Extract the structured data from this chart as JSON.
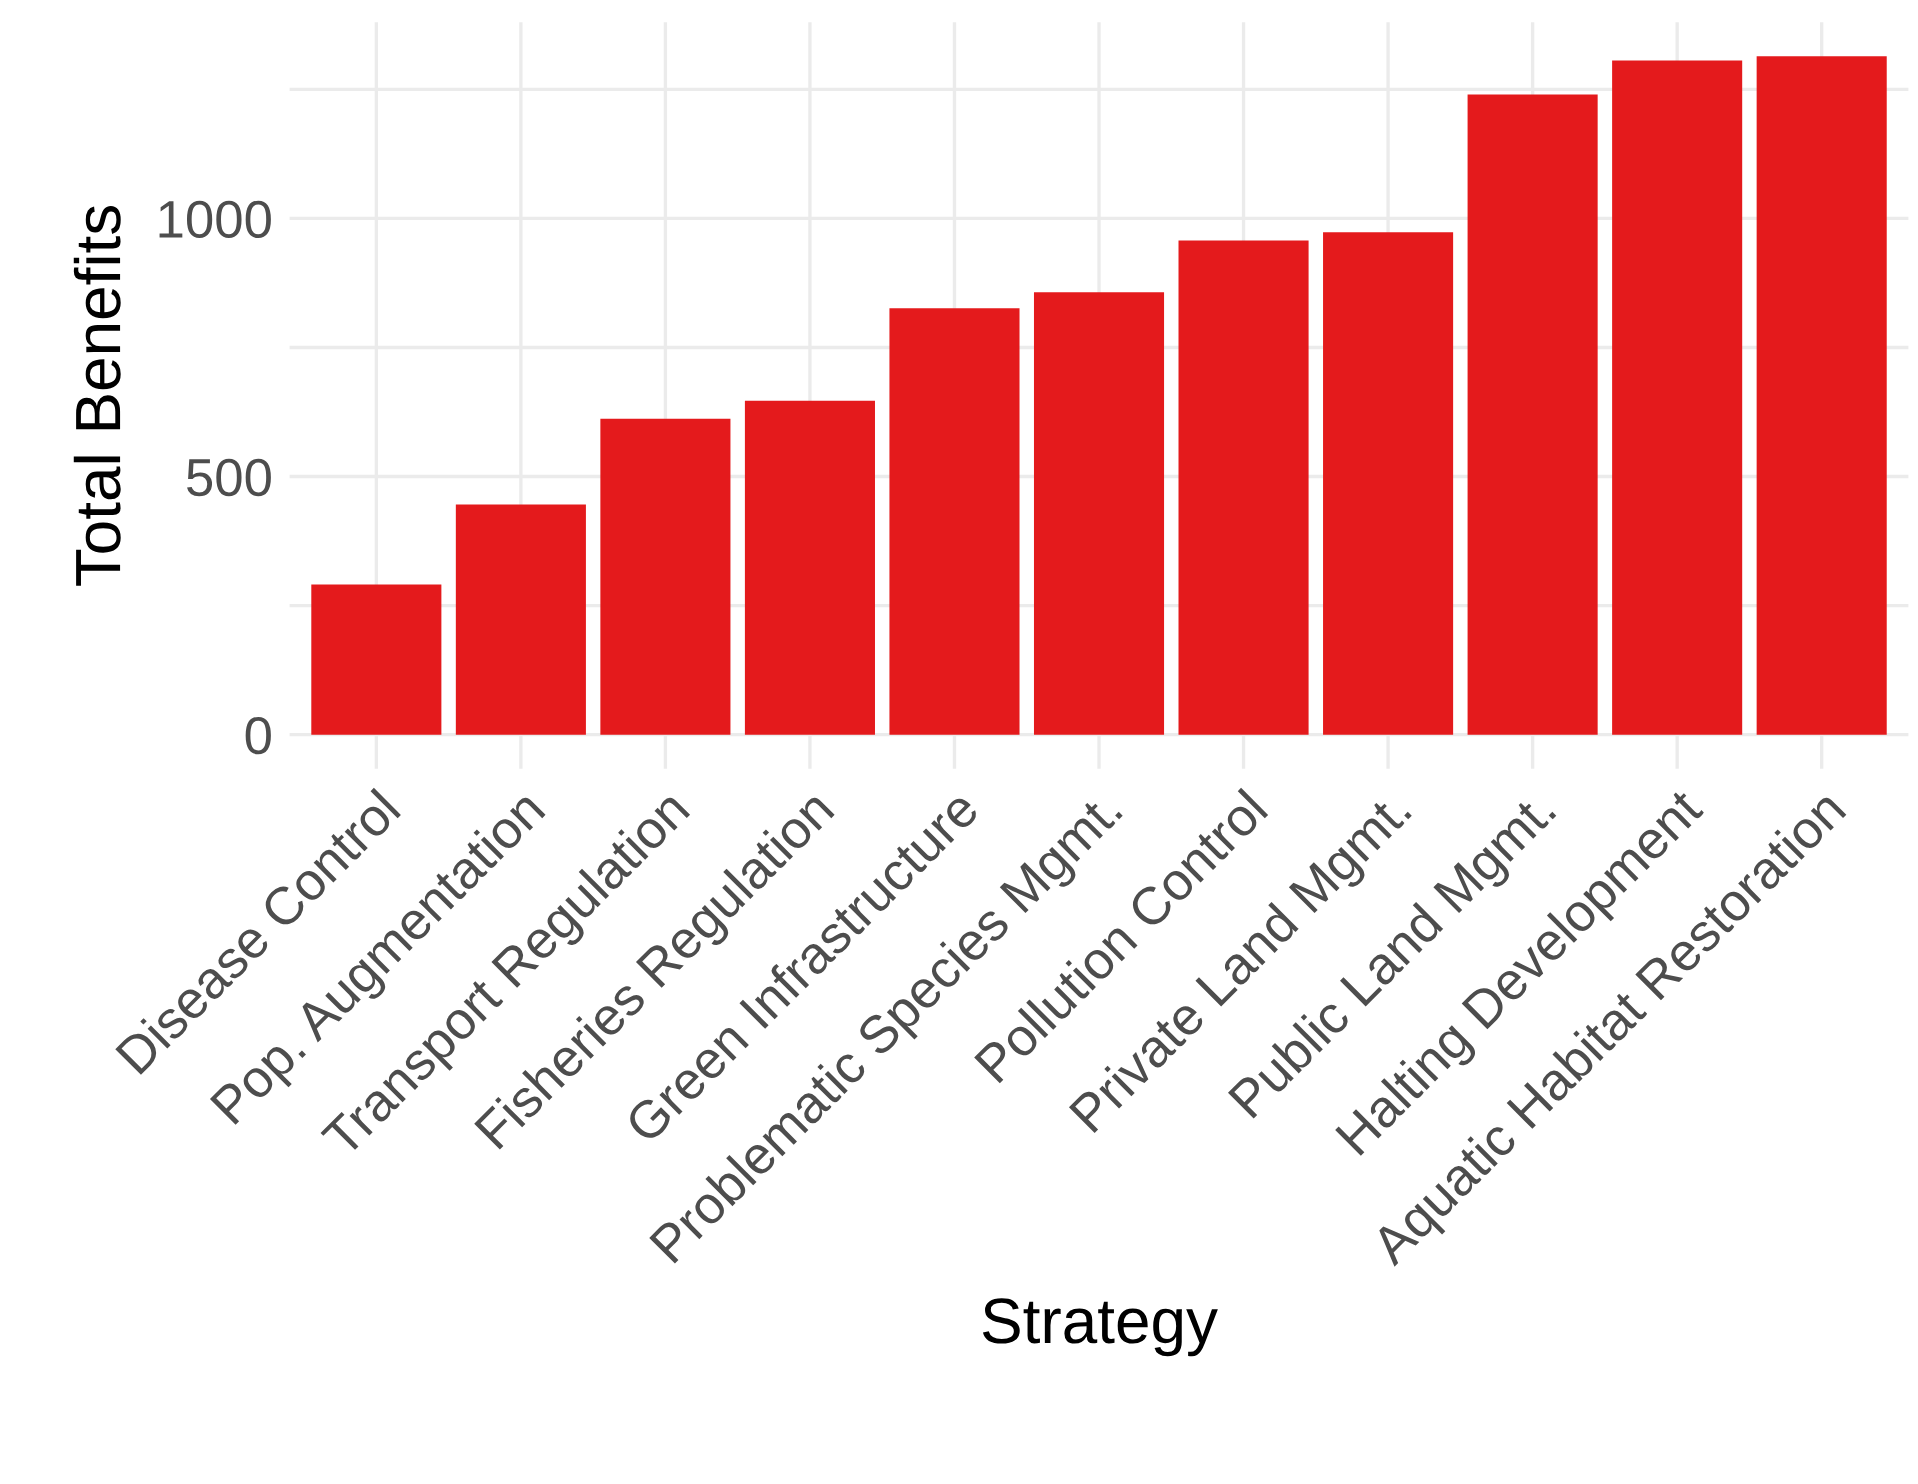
{
  "chart_data": {
    "type": "bar",
    "xlabel": "Strategy",
    "ylabel": "Total Benefits",
    "categories": [
      "Disease Control",
      "Pop. Augmentation",
      "Transport Regulation",
      "Fisheries Regulation",
      "Green Infrastructure",
      "Problematic Species Mgmt.",
      "Pollution Control",
      "Private Land Mgmt.",
      "Public Land Mgmt.",
      "Halting Development",
      "Aquatic Habitat Restoration"
    ],
    "values": [
      291,
      446,
      612,
      647,
      826,
      857,
      957,
      973,
      1240,
      1306,
      1314
    ],
    "color": "#e41a1c",
    "ylim": [
      -66,
      1380
    ],
    "yticks": [
      0,
      {
        "value": 250,
        "label": null
      },
      500,
      {
        "value": 750,
        "label": null
      },
      1000,
      {
        "value": 1250,
        "label": null
      }
    ],
    "grid": true
  }
}
